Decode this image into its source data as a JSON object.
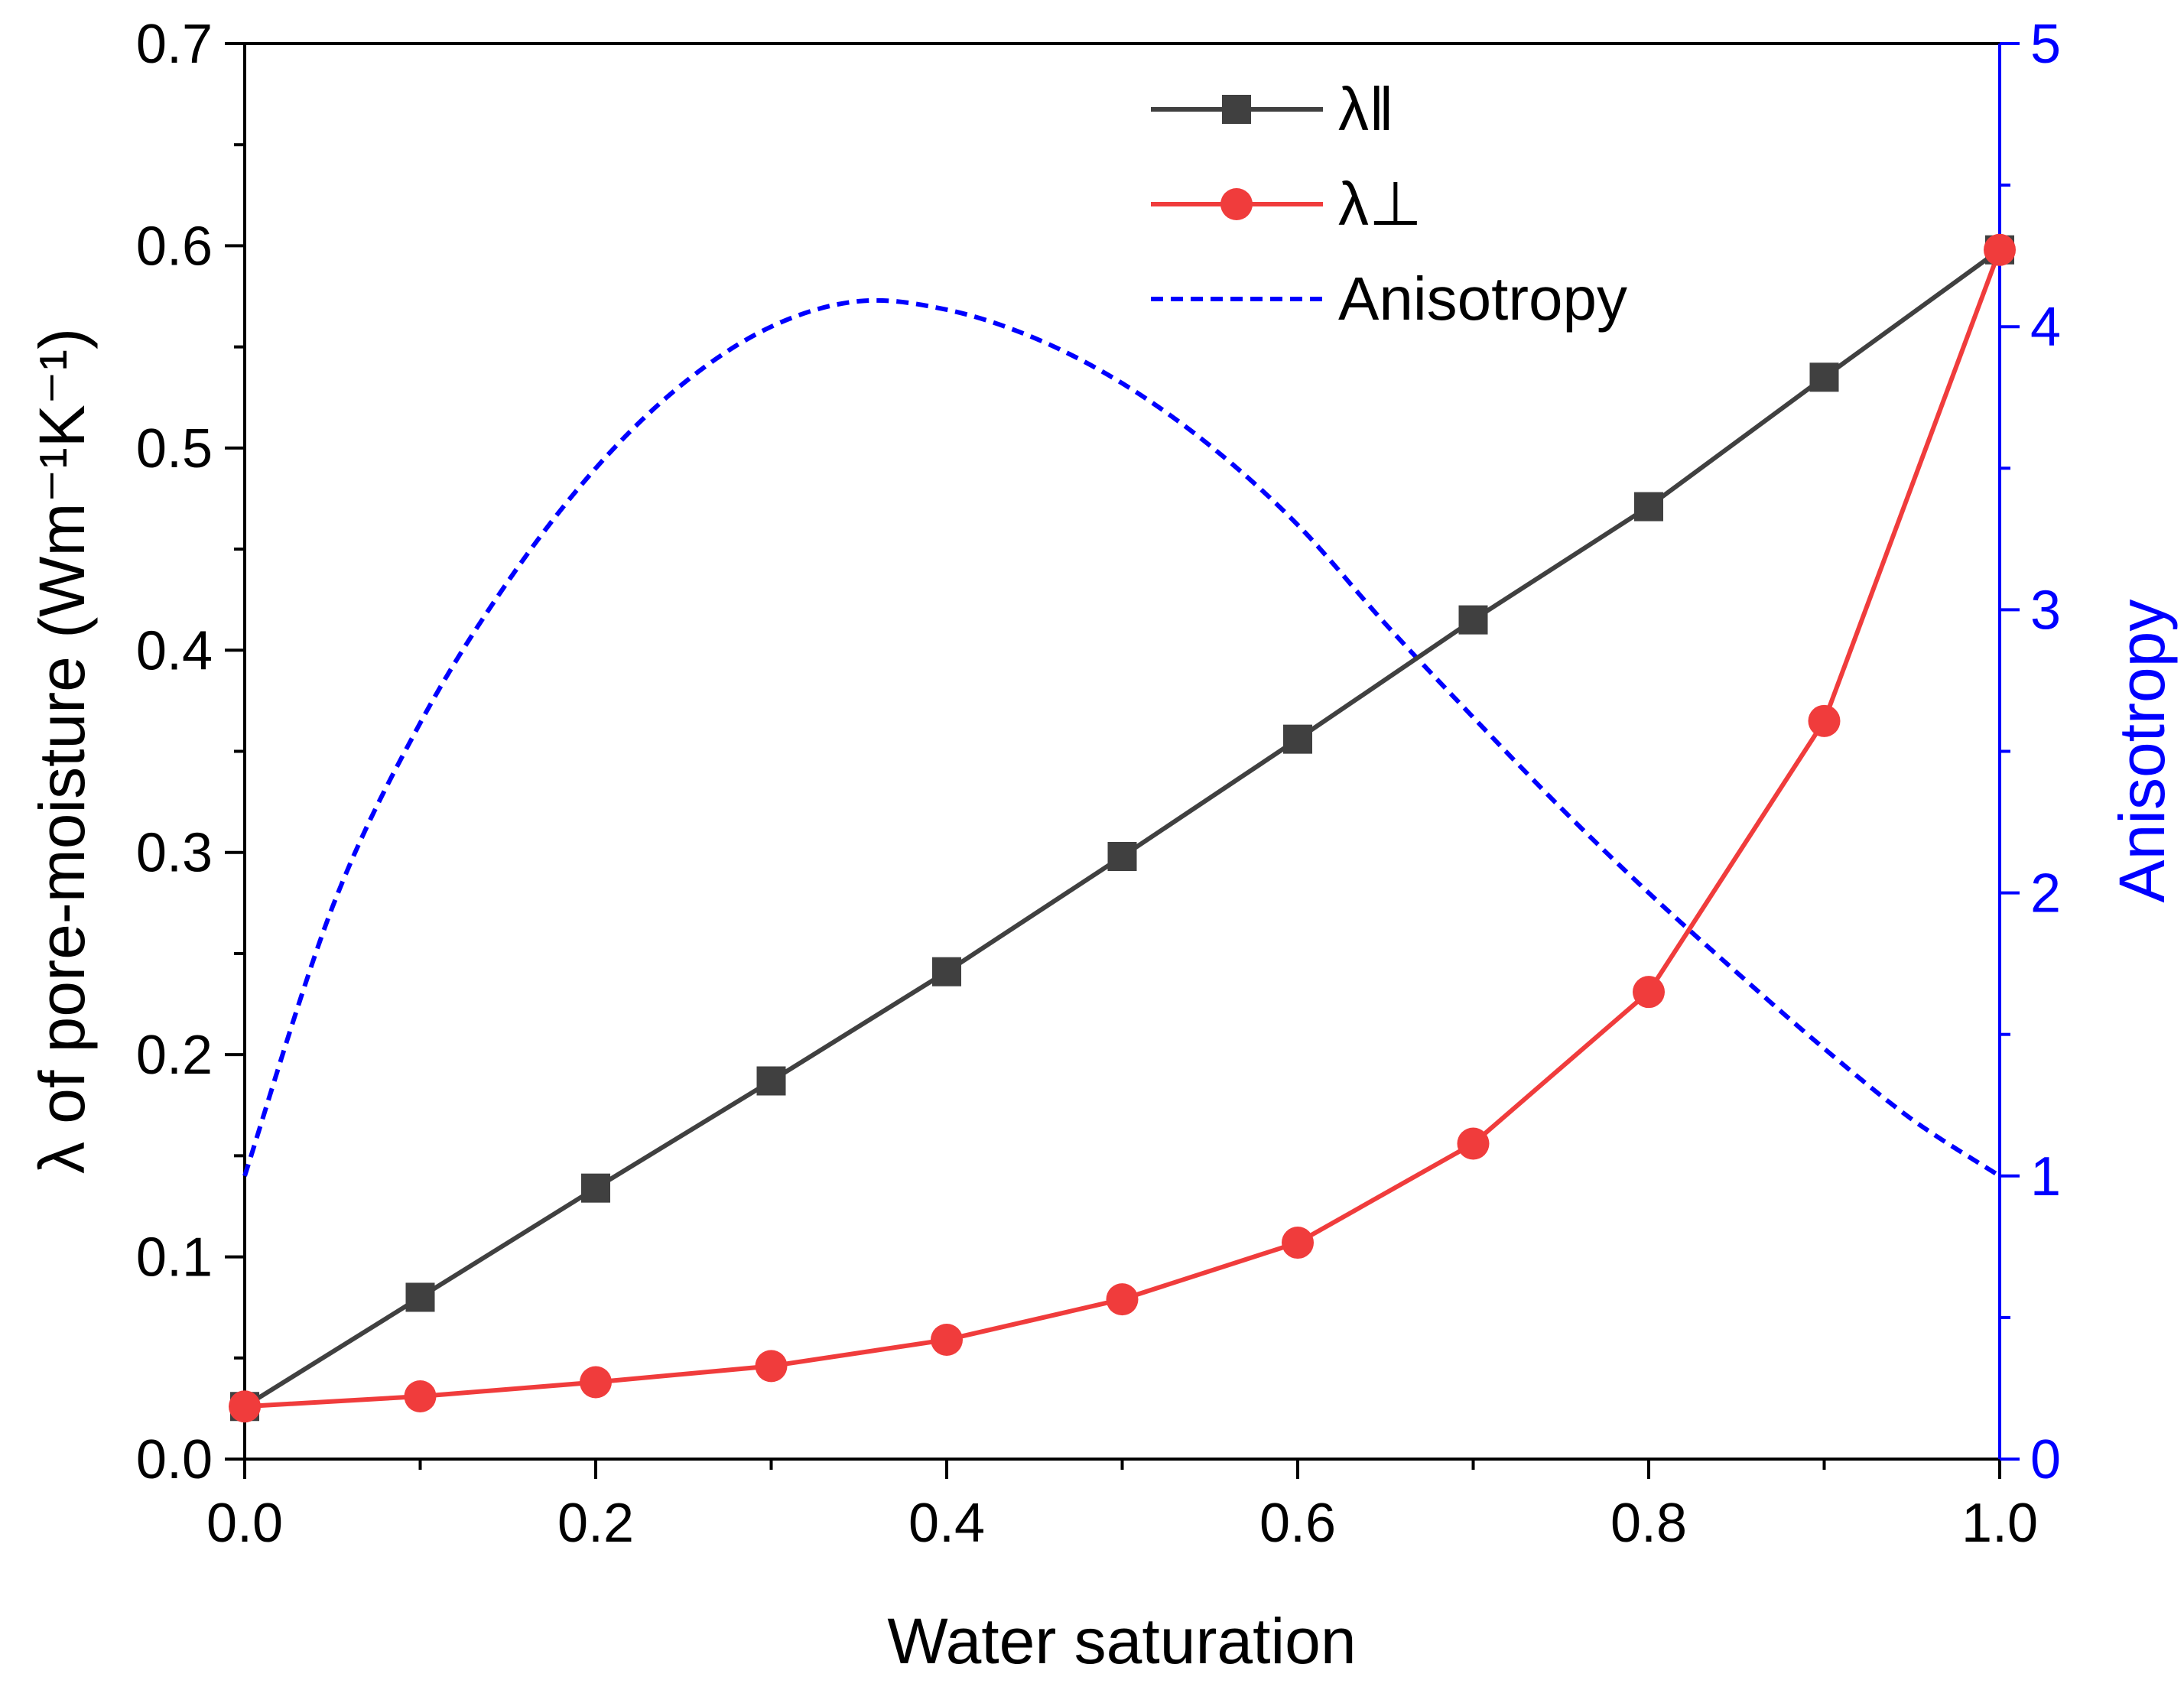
{
  "chart_data": {
    "type": "line",
    "title": "",
    "xlabel": "Water saturation",
    "ylabel": "λ of pore-moisture (Wm⁻¹K⁻¹)",
    "y2label": "Anisotropy",
    "xlim": [
      0,
      1
    ],
    "ylim": [
      0,
      0.7
    ],
    "y2lim": [
      0,
      5
    ],
    "x_ticks": [
      "0.0",
      "0.2",
      "0.4",
      "0.6",
      "0.8",
      "1.0"
    ],
    "y_ticks": [
      "0.0",
      "0.1",
      "0.2",
      "0.3",
      "0.4",
      "0.5",
      "0.6",
      "0.7"
    ],
    "y2_ticks": [
      "0",
      "1",
      "2",
      "3",
      "4",
      "5"
    ],
    "legend_position": "top-center",
    "series": [
      {
        "name": "λ‖",
        "axis": "left",
        "color": "#404040",
        "marker": "square",
        "line": "solid",
        "x": [
          0,
          0.1,
          0.2,
          0.3,
          0.4,
          0.5,
          0.6,
          0.7,
          0.8,
          0.9,
          1.0
        ],
        "values": [
          0.026,
          0.08,
          0.134,
          0.187,
          0.241,
          0.298,
          0.356,
          0.415,
          0.471,
          0.535,
          0.598
        ]
      },
      {
        "name": "λ⊥",
        "axis": "left",
        "color": "#f03c3c",
        "marker": "circle",
        "line": "solid",
        "x": [
          0,
          0.1,
          0.2,
          0.3,
          0.4,
          0.5,
          0.6,
          0.7,
          0.8,
          0.9,
          1.0
        ],
        "values": [
          0.026,
          0.031,
          0.038,
          0.046,
          0.059,
          0.079,
          0.107,
          0.156,
          0.231,
          0.365,
          0.598
        ]
      },
      {
        "name": "Anisotropy",
        "axis": "right",
        "color": "#0000ff",
        "marker": "none",
        "line": "dashed",
        "x": [
          0,
          0.05,
          0.1,
          0.15,
          0.2,
          0.25,
          0.3,
          0.35,
          0.4,
          0.45,
          0.5,
          0.55,
          0.6,
          0.65,
          0.7,
          0.75,
          0.8,
          0.85,
          0.9,
          0.95,
          1.0
        ],
        "values": [
          1.0,
          1.95,
          2.6,
          3.1,
          3.5,
          3.8,
          4.0,
          4.09,
          4.06,
          3.96,
          3.8,
          3.58,
          3.3,
          2.95,
          2.62,
          2.3,
          2.0,
          1.72,
          1.45,
          1.2,
          1.0
        ]
      }
    ]
  }
}
